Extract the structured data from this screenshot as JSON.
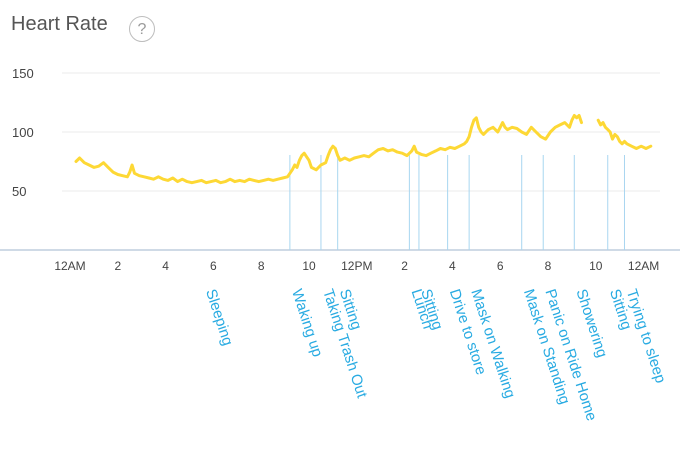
{
  "header": {
    "title": "Heart Rate",
    "help_label": "?"
  },
  "chart_data": {
    "type": "line",
    "title": "Heart Rate",
    "xlabel": "",
    "ylabel": "",
    "xlim": [
      0,
      24
    ],
    "ylim": [
      0,
      150
    ],
    "y_ticks": [
      50,
      100,
      150
    ],
    "x_ticks": [
      {
        "h": 0,
        "label": "12AM"
      },
      {
        "h": 2,
        "label": "2"
      },
      {
        "h": 4,
        "label": "4"
      },
      {
        "h": 6,
        "label": "6"
      },
      {
        "h": 8,
        "label": "8"
      },
      {
        "h": 10,
        "label": "10"
      },
      {
        "h": 12,
        "label": "12PM"
      },
      {
        "h": 14,
        "label": "2"
      },
      {
        "h": 16,
        "label": "4"
      },
      {
        "h": 18,
        "label": "6"
      },
      {
        "h": 20,
        "label": "8"
      },
      {
        "h": 22,
        "label": "10"
      },
      {
        "h": 24,
        "label": "12AM"
      }
    ],
    "grid": true,
    "series": [
      {
        "color": "#fdd835",
        "segments": [
          [
            [
              0.25,
              75
            ],
            [
              0.4,
              78
            ],
            [
              0.6,
              74
            ],
            [
              0.8,
              72
            ],
            [
              1,
              70
            ],
            [
              1.2,
              71
            ],
            [
              1.4,
              74
            ],
            [
              1.6,
              70
            ],
            [
              1.8,
              66
            ],
            [
              2,
              64
            ],
            [
              2.2,
              63
            ],
            [
              2.4,
              62
            ],
            [
              2.5,
              66
            ],
            [
              2.6,
              72
            ],
            [
              2.7,
              65
            ],
            [
              2.9,
              63
            ],
            [
              3.1,
              62
            ],
            [
              3.3,
              61
            ],
            [
              3.5,
              60
            ],
            [
              3.7,
              62
            ],
            [
              3.9,
              60
            ],
            [
              4.1,
              59
            ],
            [
              4.3,
              61
            ],
            [
              4.5,
              58
            ],
            [
              4.7,
              60
            ],
            [
              4.9,
              58
            ],
            [
              5.1,
              57
            ],
            [
              5.3,
              58
            ],
            [
              5.5,
              59
            ],
            [
              5.7,
              57
            ],
            [
              5.9,
              58
            ],
            [
              6.1,
              59
            ],
            [
              6.3,
              57
            ],
            [
              6.5,
              58
            ],
            [
              6.7,
              60
            ],
            [
              6.9,
              58
            ],
            [
              7.1,
              59
            ],
            [
              7.3,
              58
            ],
            [
              7.5,
              60
            ],
            [
              7.7,
              59
            ],
            [
              7.9,
              58
            ],
            [
              8.1,
              59
            ],
            [
              8.3,
              60
            ],
            [
              8.5,
              59
            ],
            [
              8.7,
              60
            ],
            [
              8.9,
              61
            ],
            [
              9.1,
              62
            ],
            [
              9.3,
              68
            ],
            [
              9.4,
              72
            ],
            [
              9.5,
              70
            ],
            [
              9.6,
              76
            ],
            [
              9.7,
              80
            ],
            [
              9.8,
              82
            ],
            [
              9.9,
              79
            ],
            [
              10,
              76
            ],
            [
              10.1,
              70
            ],
            [
              10.3,
              68
            ],
            [
              10.5,
              72
            ],
            [
              10.7,
              74
            ],
            [
              10.8,
              80
            ],
            [
              10.9,
              85
            ],
            [
              11,
              88
            ],
            [
              11.1,
              86
            ],
            [
              11.2,
              80
            ],
            [
              11.3,
              76
            ],
            [
              11.5,
              78
            ],
            [
              11.7,
              76
            ],
            [
              11.9,
              78
            ],
            [
              12.1,
              79
            ],
            [
              12.3,
              80
            ],
            [
              12.5,
              79
            ],
            [
              12.7,
              82
            ],
            [
              12.9,
              85
            ],
            [
              13.1,
              86
            ],
            [
              13.3,
              84
            ],
            [
              13.5,
              85
            ],
            [
              13.7,
              83
            ],
            [
              13.9,
              82
            ],
            [
              14.1,
              80
            ],
            [
              14.3,
              84
            ],
            [
              14.4,
              88
            ],
            [
              14.5,
              83
            ],
            [
              14.7,
              81
            ],
            [
              14.9,
              80
            ],
            [
              15.1,
              82
            ],
            [
              15.3,
              84
            ],
            [
              15.5,
              86
            ],
            [
              15.7,
              85
            ],
            [
              15.9,
              87
            ],
            [
              16.1,
              86
            ],
            [
              16.3,
              88
            ],
            [
              16.5,
              90
            ],
            [
              16.6,
              92
            ],
            [
              16.7,
              96
            ],
            [
              16.8,
              104
            ],
            [
              16.9,
              110
            ],
            [
              17,
              112
            ],
            [
              17.1,
              104
            ],
            [
              17.2,
              100
            ],
            [
              17.3,
              98
            ],
            [
              17.5,
              102
            ],
            [
              17.7,
              104
            ],
            [
              17.9,
              100
            ],
            [
              18,
              104
            ],
            [
              18.1,
              108
            ],
            [
              18.2,
              104
            ],
            [
              18.3,
              102
            ],
            [
              18.5,
              104
            ],
            [
              18.7,
              103
            ],
            [
              18.9,
              100
            ],
            [
              19.1,
              98
            ],
            [
              19.3,
              104
            ],
            [
              19.5,
              100
            ],
            [
              19.7,
              96
            ],
            [
              19.9,
              94
            ],
            [
              20.1,
              100
            ],
            [
              20.3,
              104
            ],
            [
              20.5,
              106
            ],
            [
              20.7,
              108
            ],
            [
              20.9,
              104
            ],
            [
              21,
              110
            ],
            [
              21.1,
              114
            ],
            [
              21.2,
              112
            ],
            [
              21.3,
              114
            ],
            [
              21.4,
              108
            ]
          ],
          [
            [
              22.1,
              110
            ],
            [
              22.2,
              106
            ],
            [
              22.3,
              108
            ],
            [
              22.4,
              104
            ],
            [
              22.5,
              102
            ],
            [
              22.6,
              100
            ],
            [
              22.7,
              94
            ],
            [
              22.8,
              98
            ],
            [
              22.9,
              96
            ],
            [
              23,
              92
            ],
            [
              23.1,
              90
            ],
            [
              23.2,
              92
            ],
            [
              23.3,
              90
            ],
            [
              23.5,
              88
            ],
            [
              23.7,
              86
            ],
            [
              23.9,
              88
            ],
            [
              24.1,
              86
            ],
            [
              24.3,
              88
            ]
          ]
        ]
      }
    ],
    "annotations": [
      {
        "label": "Sleeping",
        "at": 5.6,
        "line": false
      },
      {
        "label": "Waking up",
        "at": 9.2,
        "line": true
      },
      {
        "label": "Taking Trash Out",
        "at": 10.5,
        "line": true
      },
      {
        "label": "Sitting",
        "at": 11.2,
        "line": true
      },
      {
        "label": "Lunch",
        "at": 14.2,
        "line": true
      },
      {
        "label": "Sitting",
        "at": 14.6,
        "line": true
      },
      {
        "label": "Drive to store",
        "at": 15.8,
        "line": true
      },
      {
        "label": "Mask on Walking",
        "at": 16.7,
        "line": true
      },
      {
        "label": "Mask on Standing",
        "at": 18.9,
        "line": true
      },
      {
        "label": "Panic on Ride Home",
        "at": 19.8,
        "line": true
      },
      {
        "label": "Showering",
        "at": 21.1,
        "line": true
      },
      {
        "label": "Sitting",
        "at": 22.5,
        "line": true
      },
      {
        "label": "Trying to sleep",
        "at": 23.2,
        "line": true
      }
    ]
  }
}
